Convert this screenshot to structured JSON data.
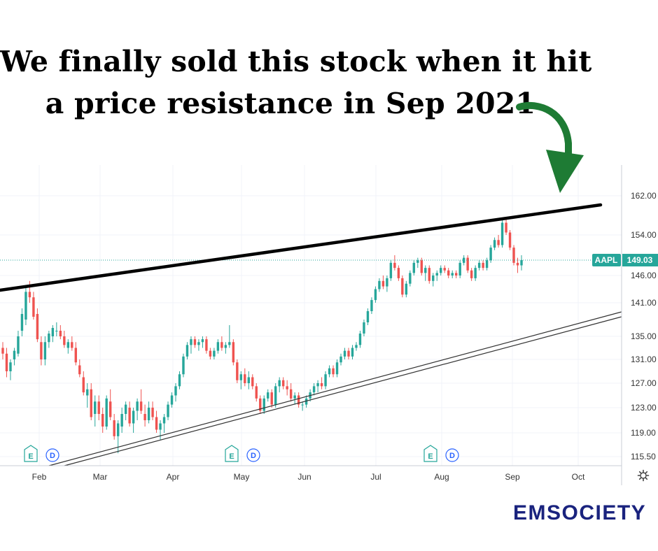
{
  "headline": {
    "line1": "We finally sold this stock when it hit",
    "line2": "a price resistance in Sep 2021"
  },
  "brand": {
    "name": "EMSOCIETY",
    "color": "#1a237e"
  },
  "colors": {
    "up": "#26a69a",
    "down": "#ef5350",
    "resistance": "#000000",
    "support": "#333333",
    "arrow": "#1e7b34",
    "last_price": "#26a69a"
  },
  "chart_data": {
    "type": "candlestick",
    "symbol": "AAPL",
    "last_price": 149.03,
    "last_price_label": "149.03",
    "y_axis": {
      "ticks": [
        115.5,
        119.0,
        123.0,
        127.0,
        131.0,
        135.0,
        141.0,
        146.0,
        154.0,
        162.0
      ],
      "tick_labels": [
        "115.50",
        "119.00",
        "123.00",
        "127.00",
        "131.00",
        "135.00",
        "141.00",
        "146.00",
        "154.00",
        "162.00"
      ],
      "side": "right"
    },
    "x_axis": {
      "ticks": [
        "Feb",
        "Mar",
        "Apr",
        "May",
        "Jun",
        "Jul",
        "Aug",
        "Sep",
        "Oct"
      ]
    },
    "event_markers": [
      {
        "month": "Feb",
        "labels": [
          "E",
          "D"
        ]
      },
      {
        "month": "May",
        "labels": [
          "E",
          "D"
        ]
      },
      {
        "month": "Aug",
        "labels": [
          "E",
          "D"
        ]
      }
    ],
    "ohlc": [
      [
        133,
        134,
        131,
        132
      ],
      [
        132,
        133,
        128,
        129
      ],
      [
        129,
        131,
        127.5,
        130.5
      ],
      [
        131,
        133,
        130,
        132.5
      ],
      [
        132,
        136,
        131.5,
        135
      ],
      [
        136,
        140,
        135,
        139
      ],
      [
        138,
        144,
        137,
        143
      ],
      [
        143,
        145,
        141,
        142
      ],
      [
        142,
        143,
        138,
        138.5
      ],
      [
        139,
        140,
        134,
        134.5
      ],
      [
        134,
        135,
        130,
        131
      ],
      [
        131,
        135,
        130,
        134
      ],
      [
        134,
        136,
        133,
        135.5
      ],
      [
        135,
        137,
        134,
        136.5
      ],
      [
        136,
        137.5,
        135,
        136
      ],
      [
        136,
        137,
        134.5,
        135
      ],
      [
        135,
        136,
        133,
        133.5
      ],
      [
        133,
        134.5,
        132,
        134
      ],
      [
        134,
        135,
        132.5,
        133
      ],
      [
        133,
        134,
        130,
        130.5
      ],
      [
        130,
        131,
        128,
        128.5
      ],
      [
        128,
        129,
        125,
        125.5
      ],
      [
        125,
        127,
        123,
        126
      ],
      [
        126,
        127,
        121,
        121.5
      ],
      [
        122,
        125,
        120,
        124
      ],
      [
        124,
        125,
        121,
        122
      ],
      [
        122,
        123,
        119,
        120
      ],
      [
        120,
        125,
        119.5,
        124.5
      ],
      [
        124,
        126,
        121,
        121.5
      ],
      [
        121,
        122,
        118,
        118.5
      ],
      [
        118.5,
        121,
        116,
        120.5
      ],
      [
        120,
        123,
        119,
        122
      ],
      [
        122,
        124,
        121,
        123.5
      ],
      [
        123,
        124,
        120,
        120.5
      ],
      [
        120.5,
        123,
        119,
        122.5
      ],
      [
        122.5,
        124.5,
        121,
        124
      ],
      [
        124,
        126,
        122,
        122.5
      ],
      [
        122,
        123.5,
        120,
        121
      ],
      [
        121,
        124,
        120.5,
        123
      ],
      [
        123,
        124,
        121,
        121.5
      ],
      [
        121.5,
        122.5,
        119,
        119.5
      ],
      [
        119.5,
        121,
        118,
        120.5
      ],
      [
        120.5,
        122,
        119,
        121.5
      ],
      [
        121.5,
        124,
        121,
        123.5
      ],
      [
        123.5,
        125.5,
        123,
        125
      ],
      [
        125,
        127,
        124,
        126.5
      ],
      [
        126.5,
        129,
        126,
        128.5
      ],
      [
        128.5,
        132,
        128,
        131.5
      ],
      [
        131.5,
        134,
        131,
        133.5
      ],
      [
        133.5,
        135,
        132,
        134.5
      ],
      [
        134.5,
        135,
        133,
        133.5
      ],
      [
        133.5,
        134.5,
        132.5,
        134
      ],
      [
        134,
        135,
        133,
        134.5
      ],
      [
        134.5,
        135,
        132,
        132.5
      ],
      [
        132.5,
        133,
        131,
        131.5
      ],
      [
        131.5,
        133,
        131,
        132.5
      ],
      [
        132.5,
        134.5,
        132,
        134
      ],
      [
        134,
        135,
        132.5,
        133
      ],
      [
        133,
        134,
        132,
        133.5
      ],
      [
        133.5,
        137,
        133,
        134
      ],
      [
        134,
        134.5,
        130,
        130.5
      ],
      [
        130.5,
        131,
        127,
        127.5
      ],
      [
        127.5,
        129,
        126,
        128.5
      ],
      [
        128.5,
        129.5,
        126.5,
        127
      ],
      [
        127,
        129,
        126,
        128
      ],
      [
        128,
        128.5,
        126,
        126.5
      ],
      [
        126.5,
        127,
        124,
        124.5
      ],
      [
        124.5,
        125,
        122,
        122.5
      ],
      [
        122.5,
        125,
        122,
        124.5
      ],
      [
        124.5,
        126,
        124,
        125.5
      ],
      [
        125.5,
        126,
        123,
        123.5
      ],
      [
        123.5,
        127,
        123,
        126.5
      ],
      [
        126.5,
        128,
        125.5,
        127.5
      ],
      [
        127.5,
        128,
        126,
        126.5
      ],
      [
        126.5,
        127.5,
        125,
        126
      ],
      [
        126,
        127,
        124,
        124.5
      ],
      [
        124.5,
        125.5,
        123.5,
        125
      ],
      [
        125,
        125.5,
        123,
        123.5
      ],
      [
        123.5,
        124,
        122.5,
        123.5
      ],
      [
        123.5,
        125,
        123,
        124.5
      ],
      [
        124.5,
        126,
        124,
        125.5
      ],
      [
        125.5,
        127,
        125,
        126.5
      ],
      [
        126.5,
        127.5,
        125.5,
        127
      ],
      [
        127,
        128,
        126,
        126.5
      ],
      [
        126.5,
        129,
        126,
        128.5
      ],
      [
        128.5,
        130,
        128,
        129.5
      ],
      [
        129.5,
        130,
        128,
        128.5
      ],
      [
        128.5,
        131,
        128,
        130.5
      ],
      [
        130.5,
        132,
        130,
        131.5
      ],
      [
        131.5,
        133,
        131,
        132.5
      ],
      [
        132.5,
        133,
        131,
        131.5
      ],
      [
        131.5,
        133.5,
        131,
        133
      ],
      [
        133,
        134,
        132.5,
        133.5
      ],
      [
        133.5,
        136,
        133,
        135.5
      ],
      [
        135.5,
        138,
        135,
        137.5
      ],
      [
        137.5,
        140,
        137,
        139.5
      ],
      [
        139.5,
        142,
        139,
        141.5
      ],
      [
        141.5,
        144,
        141,
        143.5
      ],
      [
        143.5,
        145.5,
        143,
        145
      ],
      [
        145,
        146,
        143.5,
        144
      ],
      [
        144,
        146,
        143,
        145.5
      ],
      [
        145.5,
        149,
        145,
        148.5
      ],
      [
        148.5,
        150,
        147,
        147.5
      ],
      [
        147.5,
        148,
        145,
        145.5
      ],
      [
        145.5,
        146,
        142,
        142.5
      ],
      [
        142.5,
        145,
        142,
        144.5
      ],
      [
        144.5,
        147,
        144,
        146.5
      ],
      [
        146.5,
        149,
        146,
        148.5
      ],
      [
        148.5,
        149.5,
        147.5,
        149
      ],
      [
        149,
        149.5,
        146,
        146.5
      ],
      [
        146.5,
        148,
        145,
        147.5
      ],
      [
        147.5,
        148,
        144.5,
        145
      ],
      [
        145,
        146.5,
        144,
        146
      ],
      [
        146,
        147,
        145,
        146.5
      ],
      [
        146.5,
        148,
        146,
        147.5
      ],
      [
        147.5,
        148,
        146.5,
        147
      ],
      [
        147,
        147.5,
        145.5,
        146
      ],
      [
        146,
        147,
        145.5,
        146.5
      ],
      [
        146.5,
        147,
        145.5,
        146
      ],
      [
        146,
        149,
        145.5,
        148.5
      ],
      [
        148.5,
        150,
        148,
        149.5
      ],
      [
        149.5,
        150,
        146.5,
        147
      ],
      [
        147,
        147.5,
        145,
        145.5
      ],
      [
        145.5,
        148,
        145,
        147.5
      ],
      [
        147.5,
        149,
        147,
        148.5
      ],
      [
        148.5,
        149,
        147,
        147.5
      ],
      [
        147.5,
        149.5,
        147,
        149
      ],
      [
        149,
        152,
        148.5,
        151.5
      ],
      [
        151.5,
        153.5,
        151,
        153
      ],
      [
        153,
        154,
        151.5,
        152
      ],
      [
        152,
        157,
        151.5,
        156.5
      ],
      [
        156.5,
        157.5,
        154,
        154.5
      ],
      [
        154.5,
        155,
        151,
        151.5
      ],
      [
        151.5,
        152,
        148,
        148.5
      ],
      [
        148.5,
        149.5,
        146.5,
        148
      ],
      [
        148,
        150,
        147,
        149.03
      ]
    ]
  }
}
